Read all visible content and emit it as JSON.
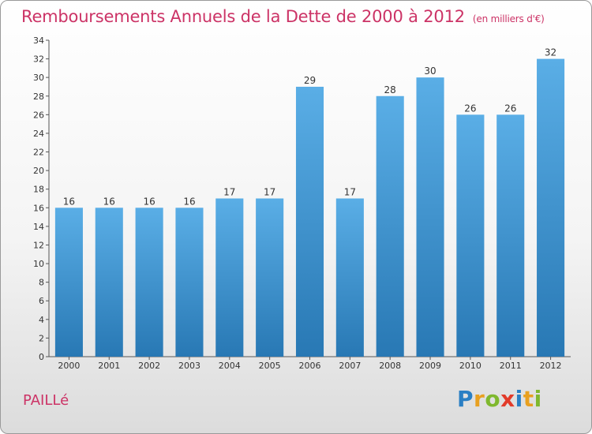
{
  "header": {
    "title": "Remboursements Annuels de la Dette de 2000 à 2012",
    "unit": "(en milliers d'€)"
  },
  "footer": {
    "commune": "PAILLé",
    "logo_letters": [
      "P",
      "r",
      "o",
      "x",
      "i",
      "t",
      "i"
    ]
  },
  "colors": {
    "title": "#cc3366",
    "bar_top": "#5aaee6",
    "bar_bottom": "#2878b4"
  },
  "chart_data": {
    "type": "bar",
    "title": "Remboursements Annuels de la Dette de 2000 à 2012",
    "categories": [
      "2000",
      "2001",
      "2002",
      "2003",
      "2004",
      "2005",
      "2006",
      "2007",
      "2008",
      "2009",
      "2010",
      "2011",
      "2012"
    ],
    "values": [
      16,
      16,
      16,
      16,
      17,
      17,
      29,
      17,
      28,
      30,
      26,
      26,
      32
    ],
    "data_labels": [
      "16",
      "16",
      "16",
      "16",
      "17",
      "17",
      "29",
      "17",
      "28",
      "30",
      "26",
      "26",
      "32"
    ],
    "ylim": [
      0,
      34
    ],
    "yticks": [
      0,
      2,
      4,
      6,
      8,
      10,
      12,
      14,
      16,
      18,
      20,
      22,
      24,
      26,
      28,
      30,
      32,
      34
    ],
    "grid": false,
    "xlabel": "",
    "ylabel": ""
  }
}
